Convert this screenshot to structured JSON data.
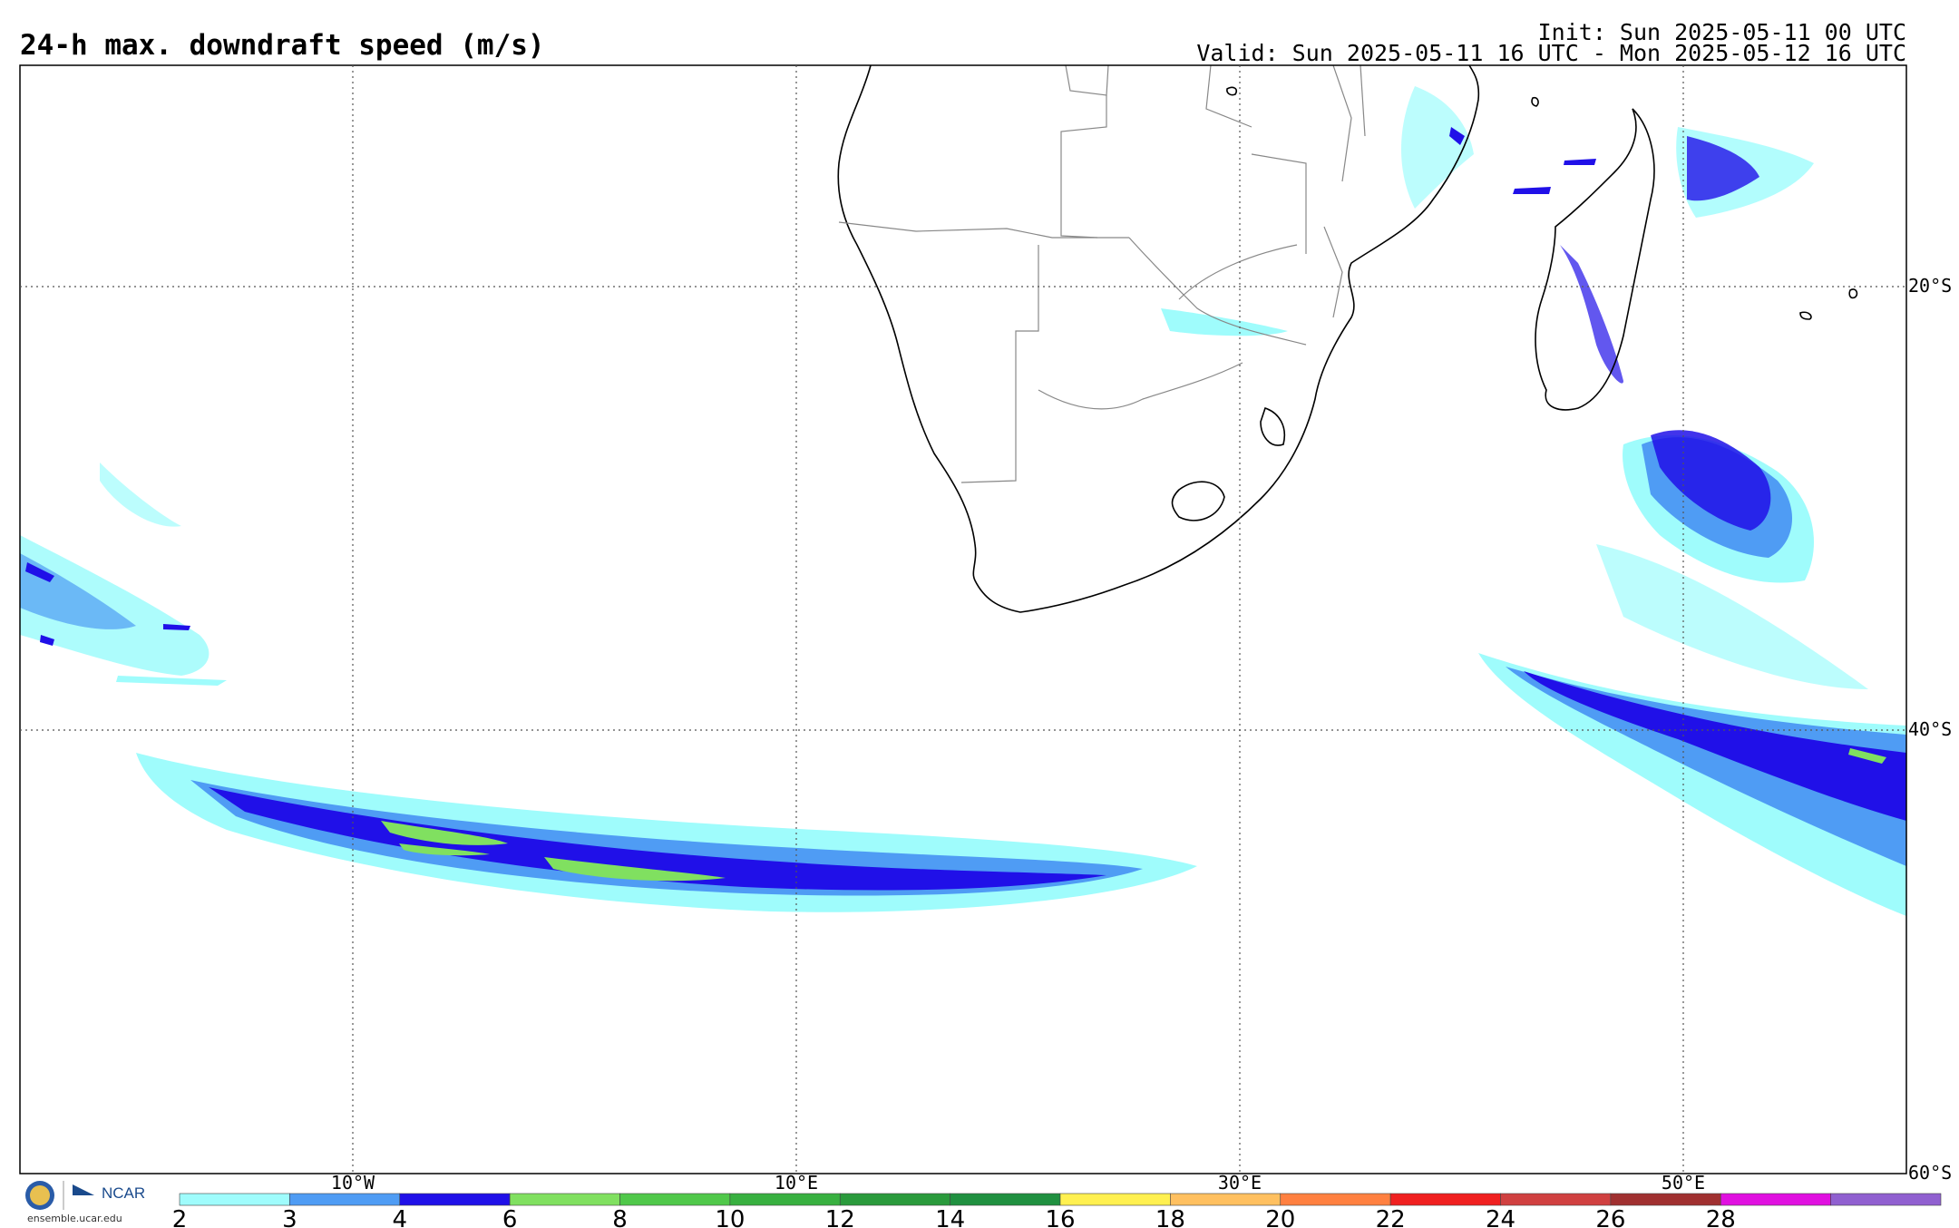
{
  "header": {
    "title": "24-h max. downdraft speed (m/s)",
    "init": "Init: Sun 2025-05-11 00 UTC",
    "valid": "Valid: Sun 2025-05-11 16 UTC - Mon 2025-05-12 16 UTC"
  },
  "map": {
    "lat_labels": [
      "20°S",
      "40°S",
      "60°S"
    ],
    "lon_labels": [
      "10°W",
      "10°E",
      "30°E",
      "50°E"
    ]
  },
  "colorbar": {
    "ticks": [
      "2",
      "3",
      "4",
      "6",
      "8",
      "10",
      "12",
      "14",
      "16",
      "18",
      "20",
      "22",
      "24",
      "26",
      "28"
    ],
    "colors": [
      "#9ffcfc",
      "#4f9cf4",
      "#2010e8",
      "#80e060",
      "#50c84a",
      "#38b040",
      "#2a9a3c",
      "#209040",
      "#fff050",
      "#ffc060",
      "#ff8040",
      "#f02020",
      "#d04040",
      "#a03030",
      "#e010e0",
      "#9060d0"
    ]
  },
  "branding": {
    "logo_text": "NCAR",
    "site": "ensemble.ucar.edu"
  }
}
